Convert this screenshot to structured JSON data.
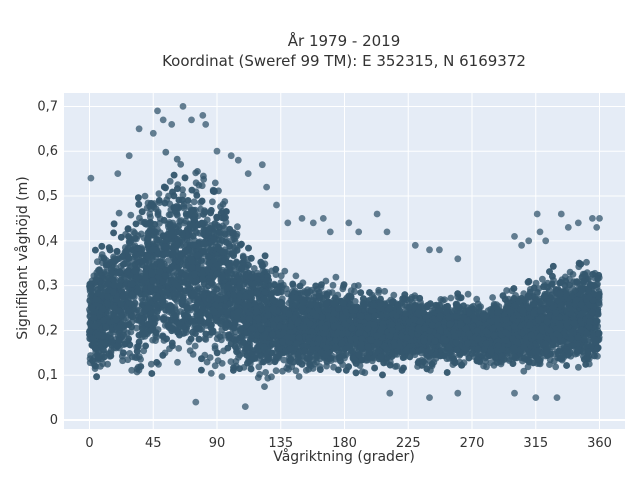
{
  "chart_data": {
    "type": "scatter",
    "title": [
      "År 1979 - 2019",
      "Koordinat (Sweref 99 TM): E 352315, N 6169372"
    ],
    "xlabel": "Vågriktning (grader)",
    "ylabel": "Signifikant våghöjd (m)",
    "xlim": [
      -18,
      378
    ],
    "ylim": [
      -0.02,
      0.73
    ],
    "x_ticks": [
      0,
      45,
      90,
      135,
      180,
      225,
      270,
      315,
      360
    ],
    "x_tick_labels": [
      "0",
      "45",
      "90",
      "135",
      "180",
      "225",
      "270",
      "315",
      "360"
    ],
    "y_ticks": [
      0,
      0.1,
      0.2,
      0.3,
      0.4,
      0.5,
      0.6,
      0.7
    ],
    "y_tick_labels": [
      "0",
      "0,1",
      "0,2",
      "0,3",
      "0,4",
      "0,5",
      "0,6",
      "0,7"
    ],
    "grid": true,
    "legend": "none",
    "colors": {
      "marker": "#34576e",
      "plot_bg": "#e5ecf6",
      "grid": "#ffffff"
    },
    "envelope": {
      "x": [
        0,
        10,
        20,
        30,
        40,
        50,
        60,
        70,
        80,
        90,
        100,
        110,
        120,
        130,
        140,
        160,
        180,
        200,
        225,
        250,
        270,
        290,
        315,
        340,
        360
      ],
      "y_max": [
        0.38,
        0.43,
        0.48,
        0.52,
        0.56,
        0.6,
        0.62,
        0.63,
        0.62,
        0.58,
        0.5,
        0.45,
        0.4,
        0.37,
        0.34,
        0.33,
        0.32,
        0.31,
        0.3,
        0.3,
        0.29,
        0.3,
        0.34,
        0.38,
        0.38
      ],
      "y_min": [
        0.08,
        0.06,
        0.05,
        0.05,
        0.05,
        0.05,
        0.05,
        0.05,
        0.05,
        0.05,
        0.05,
        0.06,
        0.06,
        0.07,
        0.08,
        0.09,
        0.09,
        0.09,
        0.1,
        0.1,
        0.1,
        0.1,
        0.09,
        0.08,
        0.08
      ]
    },
    "outliers": [
      {
        "x": 1,
        "y": 0.54
      },
      {
        "x": 20,
        "y": 0.55
      },
      {
        "x": 28,
        "y": 0.59
      },
      {
        "x": 35,
        "y": 0.65
      },
      {
        "x": 45,
        "y": 0.64
      },
      {
        "x": 48,
        "y": 0.69
      },
      {
        "x": 52,
        "y": 0.67
      },
      {
        "x": 58,
        "y": 0.66
      },
      {
        "x": 66,
        "y": 0.7
      },
      {
        "x": 72,
        "y": 0.67
      },
      {
        "x": 80,
        "y": 0.68
      },
      {
        "x": 82,
        "y": 0.66
      },
      {
        "x": 90,
        "y": 0.6
      },
      {
        "x": 100,
        "y": 0.59
      },
      {
        "x": 105,
        "y": 0.58
      },
      {
        "x": 112,
        "y": 0.55
      },
      {
        "x": 122,
        "y": 0.57
      },
      {
        "x": 125,
        "y": 0.52
      },
      {
        "x": 132,
        "y": 0.48
      },
      {
        "x": 140,
        "y": 0.44
      },
      {
        "x": 150,
        "y": 0.45
      },
      {
        "x": 158,
        "y": 0.44
      },
      {
        "x": 165,
        "y": 0.45
      },
      {
        "x": 170,
        "y": 0.42
      },
      {
        "x": 183,
        "y": 0.44
      },
      {
        "x": 190,
        "y": 0.42
      },
      {
        "x": 203,
        "y": 0.46
      },
      {
        "x": 210,
        "y": 0.42
      },
      {
        "x": 230,
        "y": 0.39
      },
      {
        "x": 240,
        "y": 0.38
      },
      {
        "x": 247,
        "y": 0.38
      },
      {
        "x": 260,
        "y": 0.36
      },
      {
        "x": 300,
        "y": 0.41
      },
      {
        "x": 305,
        "y": 0.39
      },
      {
        "x": 310,
        "y": 0.4
      },
      {
        "x": 316,
        "y": 0.46
      },
      {
        "x": 318,
        "y": 0.42
      },
      {
        "x": 322,
        "y": 0.4
      },
      {
        "x": 333,
        "y": 0.46
      },
      {
        "x": 338,
        "y": 0.43
      },
      {
        "x": 345,
        "y": 0.44
      },
      {
        "x": 355,
        "y": 0.45
      },
      {
        "x": 358,
        "y": 0.43
      },
      {
        "x": 360,
        "y": 0.45
      },
      {
        "x": 212,
        "y": 0.06
      },
      {
        "x": 240,
        "y": 0.05
      },
      {
        "x": 260,
        "y": 0.06
      },
      {
        "x": 300,
        "y": 0.06
      },
      {
        "x": 315,
        "y": 0.05
      },
      {
        "x": 330,
        "y": 0.05
      },
      {
        "x": 110,
        "y": 0.03
      },
      {
        "x": 75,
        "y": 0.04
      }
    ]
  }
}
